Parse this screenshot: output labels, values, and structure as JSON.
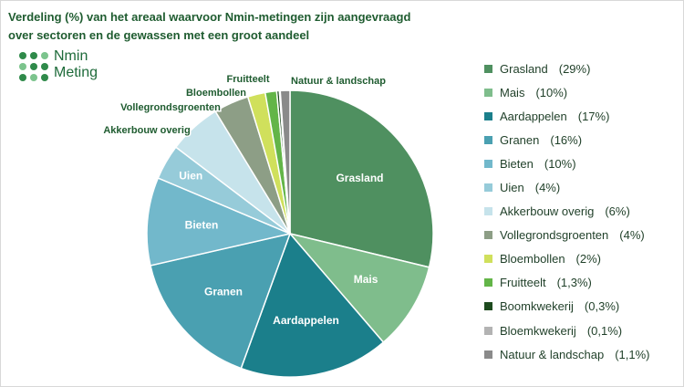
{
  "logo": [
    "Nmin",
    "Meting"
  ],
  "chart_data": {
    "type": "pie",
    "title": [
      "Verdeling (%) van het areaal waarvoor Nmin-metingen zijn aangevraagd",
      "over sectoren en de gewassen met een groot aandeel"
    ],
    "categories": [
      "Grasland",
      "Mais",
      "Aardappelen",
      "Granen",
      "Bieten",
      "Uien",
      "Akkerbouw overig",
      "Vollegrondsgroenten",
      "Bloembollen",
      "Fruitteelt",
      "Boomkwekerij",
      "Bloemkwekerij",
      "Natuur & landschap"
    ],
    "values": [
      29,
      10,
      17,
      16,
      10,
      4,
      6,
      4,
      2,
      1.3,
      0.3,
      0.1,
      1.1
    ],
    "value_labels": [
      "(29%)",
      "(10%)",
      "(17%)",
      "(16%)",
      "(10%)",
      "(4%)",
      "(6%)",
      "(4%)",
      "(2%)",
      "(1,3%)",
      "(0,3%)",
      "(0,1%)",
      "(1,1%)"
    ],
    "colors": [
      "#4f9060",
      "#7fbd8c",
      "#1b7f8b",
      "#4aa0b1",
      "#72b8cb",
      "#96cbd9",
      "#c6e3eb",
      "#8d9e86",
      "#d0e05c",
      "#63b548",
      "#1d4a1e",
      "#b3b3b3",
      "#8a8a8a"
    ],
    "legend": "right"
  }
}
